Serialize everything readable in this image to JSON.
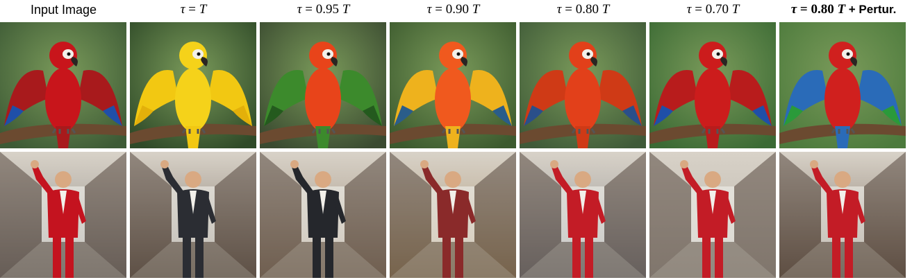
{
  "headers": {
    "input": "Input Image",
    "tau_T": {
      "tau": "τ",
      "eq": " = ",
      "val": "",
      "T": "T"
    },
    "tau_095": {
      "tau": "τ",
      "eq": " = ",
      "val": "0.95 ",
      "T": "T"
    },
    "tau_090": {
      "tau": "τ",
      "eq": " = ",
      "val": "0.90 ",
      "T": "T"
    },
    "tau_080": {
      "tau": "τ",
      "eq": " = ",
      "val": "0.80 ",
      "T": "T"
    },
    "tau_070": {
      "tau": "τ",
      "eq": " = ",
      "val": "0.70 ",
      "T": "T"
    },
    "tau_080_pert": {
      "tau": "τ",
      "eq": " = ",
      "val": "0.80 ",
      "T": "T",
      "suffix": " + Pertur."
    }
  },
  "rows": [
    {
      "subject": "parrot",
      "images": [
        {
          "bird_color": "#c8151b",
          "wing": "#a81a1c",
          "wing_tip": "#1f4fa8",
          "bg": "#3d5a35"
        },
        {
          "bird_color": "#f5d21a",
          "wing": "#f2c812",
          "wing_tip": "#e3b00a",
          "bg": "#2f4a28"
        },
        {
          "bird_color": "#e8441a",
          "wing": "#3c8a2c",
          "wing_tip": "#245a1e",
          "bg": "#3a4a30"
        },
        {
          "bird_color": "#f0591e",
          "wing": "#eeb21d",
          "wing_tip": "#2a5d8a",
          "bg": "#3c5a2e"
        },
        {
          "bird_color": "#e2401a",
          "wing": "#cf3a16",
          "wing_tip": "#2a4f8a",
          "bg": "#3f5a38"
        },
        {
          "bird_color": "#cc1c1c",
          "wing": "#b81c1c",
          "wing_tip": "#1f4fa8",
          "bg": "#3b6a34"
        },
        {
          "bird_color": "#d0201e",
          "wing": "#2a6bb8",
          "wing_tip": "#2a9a3a",
          "bg": "#4c7a3c"
        }
      ]
    },
    {
      "subject": "man",
      "images": [
        {
          "outfit": "#c4131f",
          "bg": "#8a8580"
        },
        {
          "outfit": "#2b2d33",
          "bg": "#7a6e62"
        },
        {
          "outfit": "#25272c",
          "bg": "#9a8874"
        },
        {
          "outfit": "#8a2a2a",
          "bg": "#a8916e"
        },
        {
          "outfit": "#c31c26",
          "bg": "#8a8a8c"
        },
        {
          "outfit": "#c31c26",
          "bg": "#b8b2a8"
        },
        {
          "outfit": "#c31c26",
          "bg": "#7a6a5c"
        }
      ]
    }
  ]
}
